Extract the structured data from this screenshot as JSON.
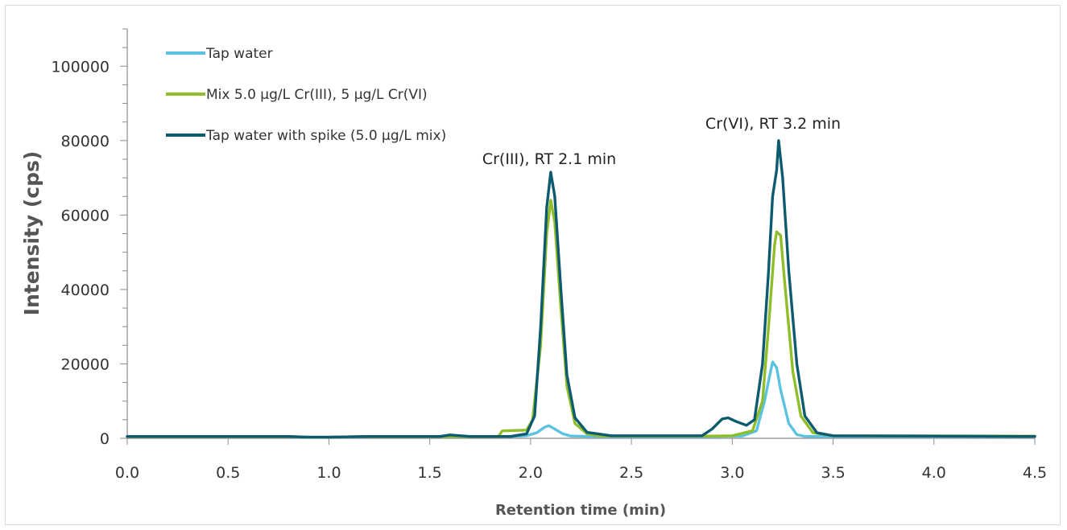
{
  "chart_data": {
    "type": "line",
    "xlabel": "Retention time (min)",
    "ylabel": "Intensity (cps)",
    "xlim": [
      0,
      4.5
    ],
    "ylim": [
      0,
      110000
    ],
    "x_ticks": [
      "0.0",
      "0.5",
      "1.0",
      "1.5",
      "2.0",
      "2.5",
      "3.0",
      "3.5",
      "4.0",
      "4.5"
    ],
    "y_ticks": [
      "0",
      "20000",
      "40000",
      "60000",
      "80000",
      "100000"
    ],
    "grid": false,
    "legend_position": "top-left",
    "annotations": [
      {
        "text": "Cr(III), RT 2.1 min",
        "x": 2.1,
        "y": 73000
      },
      {
        "text": "Cr(VI), RT 3.2 min",
        "x": 3.2,
        "y": 82000
      }
    ],
    "series": [
      {
        "name": "Tap water",
        "color": "#5bc2e0",
        "points": [
          [
            0,
            500
          ],
          [
            0.8,
            500
          ],
          [
            0.9,
            300
          ],
          [
            1.0,
            300
          ],
          [
            1.2,
            500
          ],
          [
            1.9,
            500
          ],
          [
            1.98,
            700
          ],
          [
            2.03,
            1500
          ],
          [
            2.07,
            3000
          ],
          [
            2.09,
            3400
          ],
          [
            2.12,
            2500
          ],
          [
            2.16,
            1200
          ],
          [
            2.2,
            600
          ],
          [
            2.3,
            500
          ],
          [
            2.9,
            500
          ],
          [
            3.05,
            600
          ],
          [
            3.12,
            2000
          ],
          [
            3.16,
            10000
          ],
          [
            3.19,
            18000
          ],
          [
            3.2,
            20500
          ],
          [
            3.22,
            19000
          ],
          [
            3.24,
            13000
          ],
          [
            3.28,
            4000
          ],
          [
            3.32,
            1000
          ],
          [
            3.36,
            500
          ],
          [
            4.5,
            500
          ]
        ]
      },
      {
        "name": "Mix 5.0 µg/L Cr(III), 5 µg/L Cr(VI)",
        "color": "#8fbe2a",
        "points": [
          [
            0,
            500
          ],
          [
            0.8,
            500
          ],
          [
            0.9,
            300
          ],
          [
            1.0,
            300
          ],
          [
            1.2,
            500
          ],
          [
            1.84,
            500
          ],
          [
            1.86,
            2000
          ],
          [
            1.98,
            2200
          ],
          [
            2.01,
            5000
          ],
          [
            2.05,
            25000
          ],
          [
            2.08,
            55000
          ],
          [
            2.1,
            64000
          ],
          [
            2.12,
            58000
          ],
          [
            2.15,
            35000
          ],
          [
            2.18,
            14000
          ],
          [
            2.22,
            4000
          ],
          [
            2.28,
            1200
          ],
          [
            2.35,
            600
          ],
          [
            2.9,
            600
          ],
          [
            3.0,
            700
          ],
          [
            3.1,
            2000
          ],
          [
            3.15,
            10000
          ],
          [
            3.18,
            30000
          ],
          [
            3.21,
            52000
          ],
          [
            3.22,
            55500
          ],
          [
            3.24,
            54500
          ],
          [
            3.26,
            42000
          ],
          [
            3.3,
            18000
          ],
          [
            3.34,
            6000
          ],
          [
            3.4,
            1500
          ],
          [
            3.5,
            700
          ],
          [
            4.5,
            600
          ]
        ]
      },
      {
        "name": "Tap water with spike (5.0 µg/L mix)",
        "color": "#0e5b70",
        "points": [
          [
            0,
            500
          ],
          [
            0.8,
            500
          ],
          [
            0.9,
            300
          ],
          [
            1.0,
            300
          ],
          [
            1.2,
            500
          ],
          [
            1.55,
            500
          ],
          [
            1.6,
            900
          ],
          [
            1.7,
            500
          ],
          [
            1.9,
            500
          ],
          [
            1.98,
            1200
          ],
          [
            2.02,
            6000
          ],
          [
            2.05,
            30000
          ],
          [
            2.08,
            62000
          ],
          [
            2.1,
            71500
          ],
          [
            2.12,
            65000
          ],
          [
            2.15,
            40000
          ],
          [
            2.18,
            17000
          ],
          [
            2.22,
            5500
          ],
          [
            2.28,
            1600
          ],
          [
            2.4,
            700
          ],
          [
            2.85,
            700
          ],
          [
            2.9,
            2500
          ],
          [
            2.95,
            5200
          ],
          [
            2.98,
            5500
          ],
          [
            3.02,
            4500
          ],
          [
            3.07,
            3500
          ],
          [
            3.11,
            5000
          ],
          [
            3.15,
            20000
          ],
          [
            3.18,
            45000
          ],
          [
            3.2,
            65000
          ],
          [
            3.22,
            72000
          ],
          [
            3.23,
            80000
          ],
          [
            3.25,
            70000
          ],
          [
            3.28,
            45000
          ],
          [
            3.32,
            20000
          ],
          [
            3.36,
            6000
          ],
          [
            3.42,
            1500
          ],
          [
            3.5,
            700
          ],
          [
            4.5,
            500
          ]
        ]
      }
    ]
  }
}
